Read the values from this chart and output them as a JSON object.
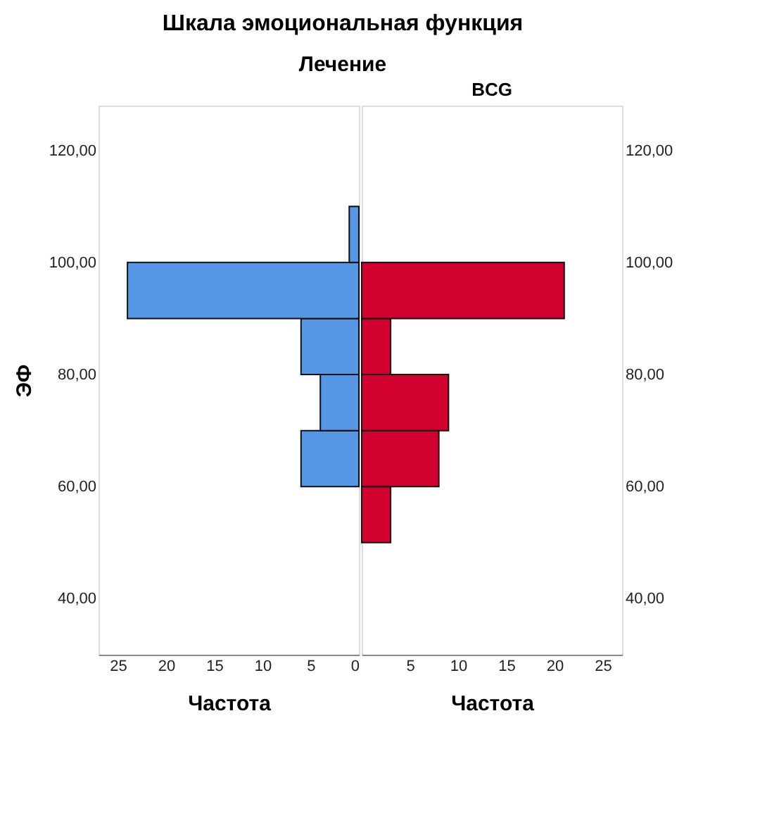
{
  "chart_data": [
    {
      "type": "histogram",
      "orientation": "horizontal",
      "title": "Шкала эмоциональная функция",
      "subtitle": "Лечение",
      "xlabel": "Частота",
      "ylabel": "ЭФ",
      "color": "#5596e5",
      "bins": [
        60,
        70,
        80,
        90,
        100,
        110
      ],
      "values": [
        6,
        4,
        6,
        24,
        1
      ],
      "xlim": [
        27,
        0
      ],
      "xticks": [
        25,
        20,
        15,
        10,
        5,
        0
      ],
      "ylim": [
        30,
        128
      ],
      "yticks": [
        {
          "value": 40,
          "label": "40,00"
        },
        {
          "value": 60,
          "label": "60,00"
        },
        {
          "value": 80,
          "label": "80,00"
        },
        {
          "value": 100,
          "label": "100,00"
        },
        {
          "value": 120,
          "label": "120,00"
        }
      ],
      "grid": false
    },
    {
      "type": "histogram",
      "orientation": "horizontal",
      "title": "BCG",
      "xlabel": "Частота",
      "color": "#d2002f",
      "bins": [
        50,
        60,
        70,
        80,
        90,
        100
      ],
      "values": [
        3,
        8,
        9,
        3,
        21
      ],
      "xlim": [
        0,
        27
      ],
      "xticks": [
        5,
        10,
        15,
        20,
        25
      ],
      "ylim": [
        30,
        128
      ],
      "yticks": [
        {
          "value": 40,
          "label": "40,00"
        },
        {
          "value": 60,
          "label": "60,00"
        },
        {
          "value": 80,
          "label": "80,00"
        },
        {
          "value": 100,
          "label": "100,00"
        },
        {
          "value": 120,
          "label": "120,00"
        }
      ],
      "grid": false
    }
  ]
}
